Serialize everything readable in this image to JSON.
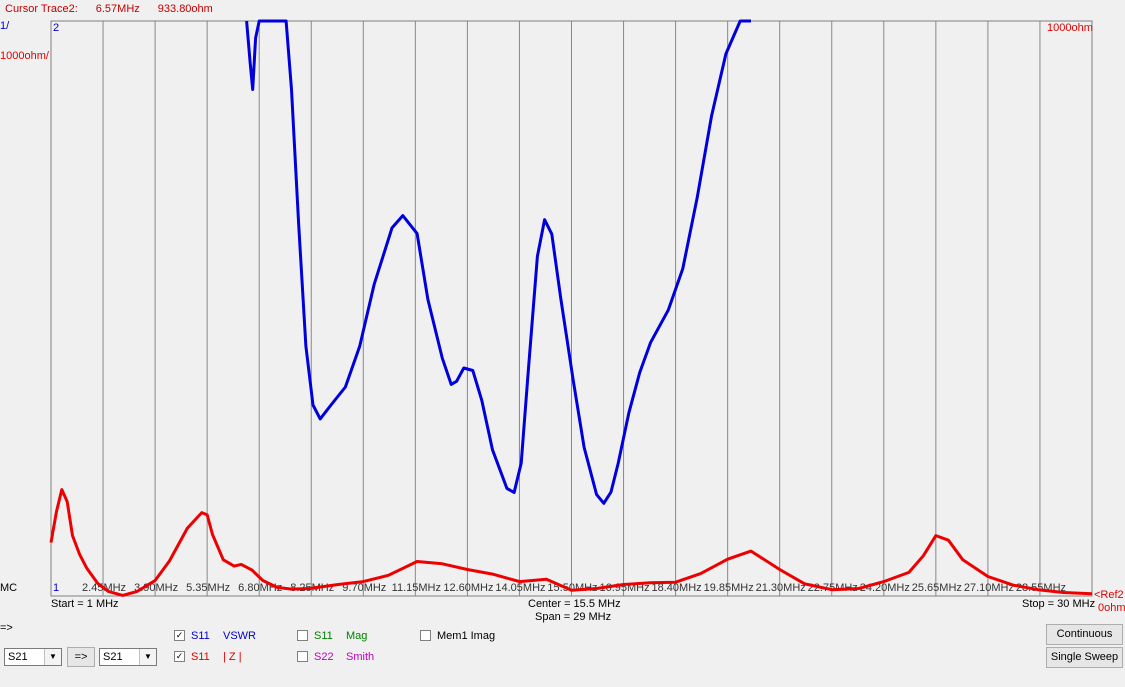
{
  "cursor": {
    "label": "Cursor Trace2:",
    "freq": "6.57MHz",
    "value": "933.80ohm"
  },
  "scale": {
    "left_top": "1/",
    "trace2_marker": "2",
    "left_div": "1000ohm/",
    "right_top": "1000ohm",
    "mc": "MC",
    "trace1_marker": "1",
    "ref_label": "<Ref2",
    "ref_value": "0ohm"
  },
  "sweep": {
    "start": "Start = 1 MHz",
    "center": "Center = 15.5 MHz",
    "span": "Span = 29 MHz",
    "stop": "Stop = 30 MHz"
  },
  "arrow_label": "=>",
  "selectors": {
    "left": "S21",
    "transfer": "=>",
    "right": "S21"
  },
  "traces": [
    {
      "checked": true,
      "param": "S11",
      "kind": "VSWR",
      "color": "#0000cc"
    },
    {
      "checked": true,
      "param": "S11",
      "kind": "| Z |",
      "color": "#e00000"
    },
    {
      "checked": false,
      "param": "S11",
      "kind": "Mag",
      "color": "#008000"
    },
    {
      "checked": false,
      "param": "S22",
      "kind": "Smith",
      "color": "#c000c0"
    },
    {
      "checked": false,
      "param": "Mem1 Imag",
      "kind": "",
      "color": "#000000"
    }
  ],
  "buttons": {
    "continuous": "Continuous",
    "single": "Single Sweep"
  },
  "colors": {
    "vswr": "#0000dd",
    "impedance": "#ee0000",
    "grid": "#888888",
    "plot_bg": "#f0f0f0"
  },
  "chart_data": {
    "type": "line",
    "x_unit": "MHz",
    "xlim": [
      1,
      30
    ],
    "tick_labels": [
      "2.45MHz",
      "3.90MHz",
      "5.35MHz",
      "6.80MHz",
      "8.25MHz",
      "9.70MHz",
      "11.15MHz",
      "12.60MHz",
      "14.05MHz",
      "15.50MHz",
      "16.95MHz",
      "18.40MHz",
      "19.85MHz",
      "21.30MHz",
      "22.75MHz",
      "24.20MHz",
      "25.65MHz",
      "27.10MHz",
      "28.55MHz"
    ],
    "grid": true,
    "series": [
      {
        "name": "S11 VSWR",
        "axis": "left",
        "ylim": [
          1,
          12.17
        ],
        "x": [
          6.45,
          6.55,
          6.62,
          6.7,
          6.8,
          7.55,
          7.7,
          7.9,
          8.1,
          8.3,
          8.5,
          8.8,
          9.2,
          9.6,
          10.0,
          10.5,
          10.8,
          11.2,
          11.5,
          11.9,
          12.15,
          12.3,
          12.5,
          12.75,
          13.0,
          13.3,
          13.7,
          13.9,
          14.1,
          14.3,
          14.55,
          14.75,
          14.95,
          15.2,
          15.55,
          15.85,
          16.2,
          16.4,
          16.6,
          16.8,
          17.1,
          17.4,
          17.7,
          18.2,
          18.6,
          19.0,
          19.4,
          19.8,
          20.2,
          20.5
        ],
        "y": [
          12.17,
          11.35,
          10.84,
          11.84,
          12.17,
          12.17,
          10.84,
          8.21,
          5.85,
          4.71,
          4.44,
          4.71,
          5.06,
          5.85,
          7.05,
          8.15,
          8.39,
          8.04,
          6.76,
          5.62,
          5.11,
          5.17,
          5.43,
          5.38,
          4.8,
          3.84,
          3.09,
          3.01,
          3.58,
          5.4,
          7.6,
          8.31,
          8.03,
          6.79,
          5.18,
          3.89,
          2.97,
          2.8,
          3.02,
          3.58,
          4.56,
          5.34,
          5.92,
          6.56,
          7.36,
          8.73,
          10.32,
          11.53,
          12.17,
          12.17
        ]
      },
      {
        "name": "S11 |Z|",
        "axis": "right",
        "ylim": [
          0,
          10000
        ],
        "x": [
          1.0,
          1.15,
          1.3,
          1.45,
          1.6,
          1.8,
          2.0,
          2.3,
          2.6,
          3.0,
          3.4,
          3.9,
          4.3,
          4.8,
          5.2,
          5.35,
          5.5,
          5.8,
          6.1,
          6.3,
          6.6,
          6.9,
          7.3,
          7.7,
          8.2,
          9.0,
          9.7,
          10.4,
          11.2,
          11.9,
          12.6,
          13.3,
          14.05,
          14.8,
          15.5,
          16.2,
          16.95,
          17.7,
          18.4,
          19.1,
          19.85,
          20.5,
          21.3,
          22.0,
          22.75,
          23.5,
          24.2,
          24.9,
          25.3,
          25.65,
          26.0,
          26.4,
          27.1,
          27.8,
          28.5,
          29.2,
          30.0
        ],
        "y": [
          930,
          1460,
          1850,
          1640,
          1050,
          720,
          480,
          220,
          80,
          10,
          80,
          270,
          610,
          1180,
          1450,
          1410,
          1070,
          630,
          520,
          550,
          450,
          270,
          150,
          120,
          130,
          200,
          250,
          360,
          600,
          560,
          460,
          380,
          250,
          290,
          100,
          130,
          200,
          230,
          240,
          390,
          640,
          780,
          460,
          210,
          110,
          130,
          250,
          410,
          700,
          1050,
          970,
          630,
          340,
          190,
          110,
          60,
          40
        ]
      }
    ]
  }
}
